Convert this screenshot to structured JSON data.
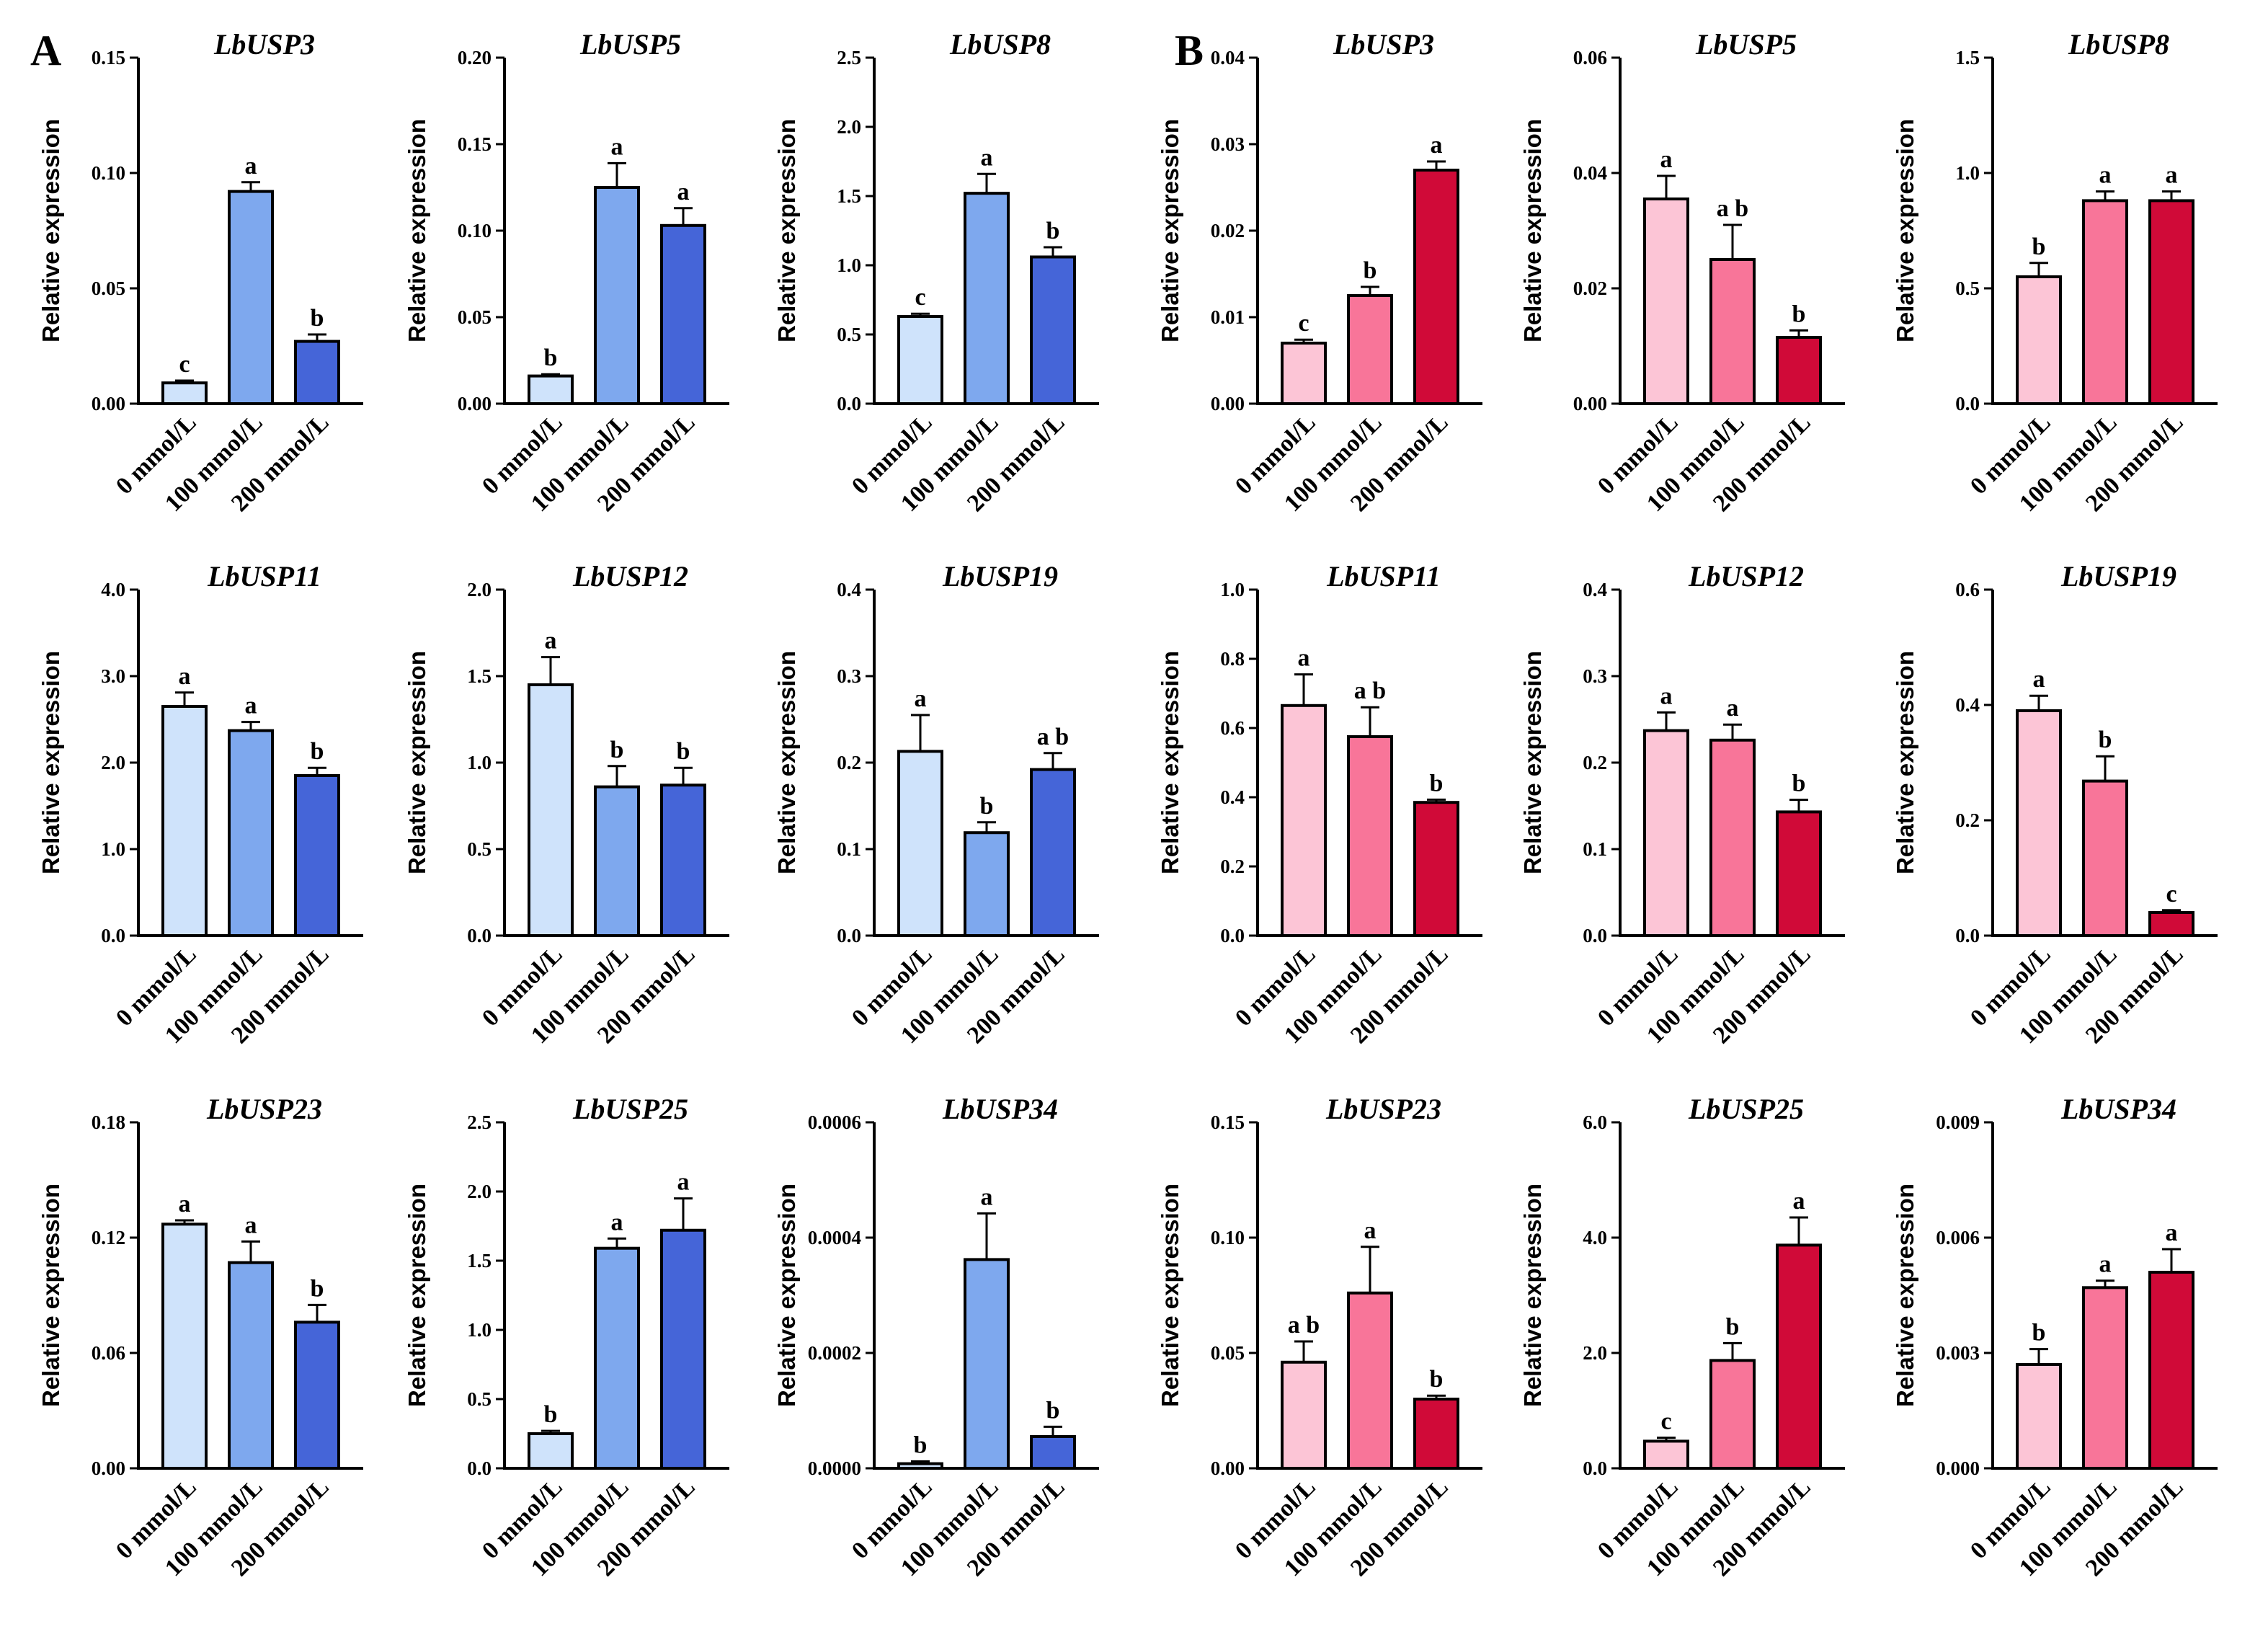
{
  "panels": [
    {
      "label": "A",
      "palette": [
        "#cfe3fb",
        "#7ea8ee",
        "#4565d8"
      ]
    },
    {
      "label": "B",
      "palette": [
        "#fcc5d6",
        "#f87599",
        "#d00a38"
      ]
    }
  ],
  "chart_data": [
    {
      "panel": "A",
      "type": "bar",
      "title": "LbUSP3",
      "ylabel": "Relative expression",
      "xlabel": "",
      "categories": [
        "0 mmol/L",
        "100 mmol/L",
        "200 mmol/L"
      ],
      "values": [
        0.009,
        0.092,
        0.027
      ],
      "errors": [
        0.001,
        0.004,
        0.003
      ],
      "letters": [
        "c",
        "a",
        "b"
      ],
      "ylim": [
        0,
        0.15
      ],
      "yticks": [
        "0.00",
        "0.05",
        "0.10",
        "0.15"
      ]
    },
    {
      "panel": "A",
      "type": "bar",
      "title": "LbUSP5",
      "ylabel": "Relative expression",
      "xlabel": "",
      "categories": [
        "0 mmol/L",
        "100 mmol/L",
        "200 mmol/L"
      ],
      "values": [
        0.016,
        0.125,
        0.103
      ],
      "errors": [
        0.001,
        0.014,
        0.01
      ],
      "letters": [
        "b",
        "a",
        "a"
      ],
      "ylim": [
        0,
        0.2
      ],
      "yticks": [
        "0.00",
        "0.05",
        "0.10",
        "0.15",
        "0.20"
      ]
    },
    {
      "panel": "A",
      "type": "bar",
      "title": "LbUSP8",
      "ylabel": "Relative expression",
      "xlabel": "",
      "categories": [
        "0 mmol/L",
        "100 mmol/L",
        "200 mmol/L"
      ],
      "values": [
        0.63,
        1.52,
        1.06
      ],
      "errors": [
        0.02,
        0.14,
        0.07
      ],
      "letters": [
        "c",
        "a",
        "b"
      ],
      "ylim": [
        0,
        2.5
      ],
      "yticks": [
        "0.0",
        "0.5",
        "1.0",
        "1.5",
        "2.0",
        "2.5"
      ]
    },
    {
      "panel": "B",
      "type": "bar",
      "title": "LbUSP3",
      "ylabel": "Relative expression",
      "xlabel": "",
      "categories": [
        "0 mmol/L",
        "100 mmol/L",
        "200 mmol/L"
      ],
      "values": [
        0.007,
        0.0125,
        0.027
      ],
      "errors": [
        0.0004,
        0.001,
        0.001
      ],
      "letters": [
        "c",
        "b",
        "a"
      ],
      "ylim": [
        0,
        0.04
      ],
      "yticks": [
        "0.00",
        "0.01",
        "0.02",
        "0.03",
        "0.04"
      ]
    },
    {
      "panel": "B",
      "type": "bar",
      "title": "LbUSP5",
      "ylabel": "Relative expression",
      "xlabel": "",
      "categories": [
        "0 mmol/L",
        "100 mmol/L",
        "200 mmol/L"
      ],
      "values": [
        0.0355,
        0.025,
        0.0115
      ],
      "errors": [
        0.004,
        0.006,
        0.0012
      ],
      "letters": [
        "a",
        "a b",
        "b"
      ],
      "ylim": [
        0,
        0.06
      ],
      "yticks": [
        "0.00",
        "0.02",
        "0.04",
        "0.06"
      ]
    },
    {
      "panel": "B",
      "type": "bar",
      "title": "LbUSP8",
      "ylabel": "Relative expression",
      "xlabel": "",
      "categories": [
        "0 mmol/L",
        "100 mmol/L",
        "200 mmol/L"
      ],
      "values": [
        0.55,
        0.88,
        0.88
      ],
      "errors": [
        0.06,
        0.04,
        0.04
      ],
      "letters": [
        "b",
        "a",
        "a"
      ],
      "ylim": [
        0,
        1.5
      ],
      "yticks": [
        "0.0",
        "0.5",
        "1.0",
        "1.5"
      ]
    },
    {
      "panel": "A",
      "type": "bar",
      "title": "LbUSP11",
      "ylabel": "Relative expression",
      "xlabel": "",
      "categories": [
        "0 mmol/L",
        "100 mmol/L",
        "200 mmol/L"
      ],
      "values": [
        2.65,
        2.37,
        1.85
      ],
      "errors": [
        0.16,
        0.1,
        0.09
      ],
      "letters": [
        "a",
        "a",
        "b"
      ],
      "ylim": [
        0,
        4.0
      ],
      "yticks": [
        "0.0",
        "1.0",
        "2.0",
        "3.0",
        "4.0"
      ]
    },
    {
      "panel": "A",
      "type": "bar",
      "title": "LbUSP12",
      "ylabel": "Relative expression",
      "xlabel": "",
      "categories": [
        "0 mmol/L",
        "100 mmol/L",
        "200 mmol/L"
      ],
      "values": [
        1.45,
        0.86,
        0.87
      ],
      "errors": [
        0.16,
        0.12,
        0.1
      ],
      "letters": [
        "a",
        "b",
        "b"
      ],
      "ylim": [
        0,
        2.0
      ],
      "yticks": [
        "0.0",
        "0.5",
        "1.0",
        "1.5",
        "2.0"
      ]
    },
    {
      "panel": "A",
      "type": "bar",
      "title": "LbUSP19",
      "ylabel": "Relative expression",
      "xlabel": "",
      "categories": [
        "0 mmol/L",
        "100 mmol/L",
        "200 mmol/L"
      ],
      "values": [
        0.213,
        0.119,
        0.192
      ],
      "errors": [
        0.042,
        0.012,
        0.019
      ],
      "letters": [
        "a",
        "b",
        "a b"
      ],
      "ylim": [
        0,
        0.4
      ],
      "yticks": [
        "0.0",
        "0.1",
        "0.2",
        "0.3",
        "0.4"
      ]
    },
    {
      "panel": "B",
      "type": "bar",
      "title": "LbUSP11",
      "ylabel": "Relative expression",
      "xlabel": "",
      "categories": [
        "0 mmol/L",
        "100 mmol/L",
        "200 mmol/L"
      ],
      "values": [
        0.665,
        0.575,
        0.385
      ],
      "errors": [
        0.09,
        0.085,
        0.008
      ],
      "letters": [
        "a",
        "a b",
        "b"
      ],
      "ylim": [
        0,
        1.0
      ],
      "yticks": [
        "0.0",
        "0.2",
        "0.4",
        "0.6",
        "0.8",
        "1.0"
      ]
    },
    {
      "panel": "B",
      "type": "bar",
      "title": "LbUSP12",
      "ylabel": "Relative expression",
      "xlabel": "",
      "categories": [
        "0 mmol/L",
        "100 mmol/L",
        "200 mmol/L"
      ],
      "values": [
        0.237,
        0.226,
        0.143
      ],
      "errors": [
        0.021,
        0.018,
        0.014
      ],
      "letters": [
        "a",
        "a",
        "b"
      ],
      "ylim": [
        0,
        0.4
      ],
      "yticks": [
        "0.0",
        "0.1",
        "0.2",
        "0.3",
        "0.4"
      ]
    },
    {
      "panel": "B",
      "type": "bar",
      "title": "LbUSP19",
      "ylabel": "Relative expression",
      "xlabel": "",
      "categories": [
        "0 mmol/L",
        "100 mmol/L",
        "200 mmol/L"
      ],
      "values": [
        0.39,
        0.268,
        0.04
      ],
      "errors": [
        0.026,
        0.043,
        0.004
      ],
      "letters": [
        "a",
        "b",
        "c"
      ],
      "ylim": [
        0,
        0.6
      ],
      "yticks": [
        "0.0",
        "0.2",
        "0.4",
        "0.6"
      ]
    },
    {
      "panel": "A",
      "type": "bar",
      "title": "LbUSP23",
      "ylabel": "Relative expression",
      "xlabel": "",
      "categories": [
        "0 mmol/L",
        "100 mmol/L",
        "200 mmol/L"
      ],
      "values": [
        0.127,
        0.107,
        0.076
      ],
      "errors": [
        0.002,
        0.011,
        0.009
      ],
      "letters": [
        "a",
        "a",
        "b"
      ],
      "ylim": [
        0,
        0.18
      ],
      "yticks": [
        "0.00",
        "0.06",
        "0.12",
        "0.18"
      ]
    },
    {
      "panel": "A",
      "type": "bar",
      "title": "LbUSP25",
      "ylabel": "Relative expression",
      "xlabel": "",
      "categories": [
        "0 mmol/L",
        "100 mmol/L",
        "200 mmol/L"
      ],
      "values": [
        0.25,
        1.59,
        1.72
      ],
      "errors": [
        0.02,
        0.07,
        0.23
      ],
      "letters": [
        "b",
        "a",
        "a"
      ],
      "ylim": [
        0,
        2.5
      ],
      "yticks": [
        "0.0",
        "0.5",
        "1.0",
        "1.5",
        "2.0",
        "2.5"
      ]
    },
    {
      "panel": "A",
      "type": "bar",
      "title": "LbUSP34",
      "ylabel": "Relative expression",
      "xlabel": "",
      "categories": [
        "0 mmol/L",
        "100 mmol/L",
        "200 mmol/L"
      ],
      "values": [
        8e-06,
        0.000362,
        5.5e-05
      ],
      "errors": [
        4e-06,
        8e-05,
        1.7e-05
      ],
      "letters": [
        "b",
        "a",
        "b"
      ],
      "ylim": [
        0,
        0.0006
      ],
      "yticks": [
        "0.0000",
        "0.0002",
        "0.0004",
        "0.0006"
      ]
    },
    {
      "panel": "B",
      "type": "bar",
      "title": "LbUSP23",
      "ylabel": "Relative expression",
      "xlabel": "",
      "categories": [
        "0 mmol/L",
        "100 mmol/L",
        "200 mmol/L"
      ],
      "values": [
        0.046,
        0.076,
        0.03
      ],
      "errors": [
        0.009,
        0.02,
        0.0015
      ],
      "letters": [
        "a b",
        "a",
        "b"
      ],
      "ylim": [
        0,
        0.15
      ],
      "yticks": [
        "0.00",
        "0.05",
        "0.10",
        "0.15"
      ]
    },
    {
      "panel": "B",
      "type": "bar",
      "title": "LbUSP25",
      "ylabel": "Relative expression",
      "xlabel": "",
      "categories": [
        "0 mmol/L",
        "100 mmol/L",
        "200 mmol/L"
      ],
      "values": [
        0.47,
        1.87,
        3.87
      ],
      "errors": [
        0.06,
        0.3,
        0.48
      ],
      "letters": [
        "c",
        "b",
        "a"
      ],
      "ylim": [
        0,
        6.0
      ],
      "yticks": [
        "0.0",
        "2.0",
        "4.0",
        "6.0"
      ]
    },
    {
      "panel": "B",
      "type": "bar",
      "title": "LbUSP34",
      "ylabel": "Relative expression",
      "xlabel": "",
      "categories": [
        "0 mmol/L",
        "100 mmol/L",
        "200 mmol/L"
      ],
      "values": [
        0.0027,
        0.0047,
        0.0051
      ],
      "errors": [
        0.0004,
        0.00018,
        0.0006
      ],
      "letters": [
        "b",
        "a",
        "a"
      ],
      "ylim": [
        0,
        0.009
      ],
      "yticks": [
        "0.000",
        "0.003",
        "0.006",
        "0.009"
      ]
    }
  ]
}
